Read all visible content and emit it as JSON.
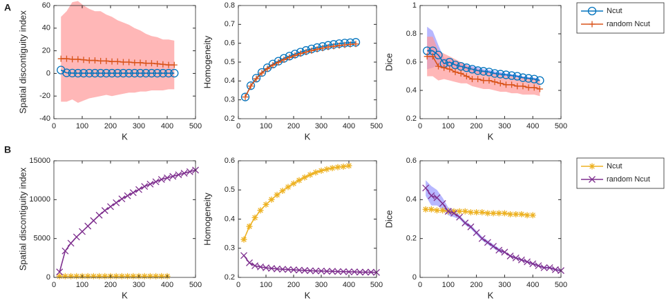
{
  "panels": [
    "A",
    "B"
  ],
  "chart_data": [
    {
      "type": "line",
      "ylabel": "Spatial discontiguity index",
      "xlabel": "K",
      "xlim": [
        0,
        500
      ],
      "xticks": [
        0,
        100,
        200,
        300,
        400,
        500
      ],
      "ylim": [
        -40,
        60
      ],
      "yticks": [
        -40,
        -20,
        0,
        20,
        40,
        60
      ],
      "series": [
        {
          "name": "Ncut",
          "color": "#0072bd",
          "marker": "o",
          "x": [
            25,
            45,
            65,
            85,
            105,
            125,
            145,
            165,
            185,
            205,
            225,
            245,
            265,
            285,
            305,
            325,
            345,
            365,
            385,
            405,
            425
          ],
          "values": [
            3,
            0.5,
            0.3,
            0.2,
            0.2,
            0.2,
            0.2,
            0.2,
            0.2,
            0.2,
            0.2,
            0.2,
            0.2,
            0.2,
            0.2,
            0.2,
            0.2,
            0.2,
            0.2,
            0.2,
            0.2
          ]
        },
        {
          "name": "random Ncut",
          "color": "#d95319",
          "marker": "+",
          "band_color": "#ff9999",
          "x": [
            25,
            45,
            65,
            85,
            105,
            125,
            145,
            165,
            185,
            205,
            225,
            245,
            265,
            285,
            305,
            325,
            345,
            365,
            385,
            405,
            425
          ],
          "values": [
            13,
            13,
            12.5,
            12.5,
            12,
            11.5,
            11.5,
            11,
            11,
            10.5,
            10.5,
            10,
            10,
            9.5,
            9.5,
            9,
            9,
            8.5,
            8,
            7.5,
            7.5
          ],
          "upper": [
            50,
            55,
            63,
            64,
            60,
            57,
            55,
            55,
            52,
            50,
            47,
            45,
            43,
            40,
            38,
            35,
            33,
            32,
            30,
            30,
            29
          ],
          "lower": [
            -25,
            -25,
            -23,
            -26,
            -24,
            -22,
            -21,
            -20,
            -19,
            -20,
            -19,
            -18,
            -17,
            -17,
            -16,
            -16,
            -15,
            -15,
            -15,
            -14,
            -14
          ]
        }
      ]
    },
    {
      "type": "line",
      "ylabel": "Homogeneity",
      "xlabel": "K",
      "xlim": [
        0,
        500
      ],
      "xticks": [
        0,
        100,
        200,
        300,
        400,
        500
      ],
      "ylim": [
        0.2,
        0.8
      ],
      "yticks": [
        0.2,
        0.3,
        0.4,
        0.5,
        0.6,
        0.7,
        0.8
      ],
      "series": [
        {
          "name": "Ncut",
          "color": "#0072bd",
          "marker": "o",
          "x": [
            25,
            45,
            65,
            85,
            105,
            125,
            145,
            165,
            185,
            205,
            225,
            245,
            265,
            285,
            305,
            325,
            345,
            365,
            385,
            405,
            425
          ],
          "values": [
            0.315,
            0.375,
            0.415,
            0.445,
            0.47,
            0.49,
            0.505,
            0.52,
            0.532,
            0.543,
            0.553,
            0.562,
            0.57,
            0.577,
            0.583,
            0.589,
            0.594,
            0.598,
            0.601,
            0.603,
            0.605
          ]
        },
        {
          "name": "random Ncut",
          "color": "#d95319",
          "marker": "+",
          "x": [
            25,
            45,
            65,
            85,
            105,
            125,
            145,
            165,
            185,
            205,
            225,
            245,
            265,
            285,
            305,
            325,
            345,
            365,
            385,
            405,
            425
          ],
          "values": [
            0.315,
            0.373,
            0.412,
            0.442,
            0.465,
            0.484,
            0.499,
            0.513,
            0.525,
            0.535,
            0.545,
            0.553,
            0.561,
            0.568,
            0.574,
            0.58,
            0.584,
            0.588,
            0.591,
            0.594,
            0.596
          ]
        }
      ]
    },
    {
      "type": "line",
      "ylabel": "Dice",
      "xlabel": "K",
      "xlim": [
        0,
        500
      ],
      "xticks": [
        0,
        100,
        200,
        300,
        400,
        500
      ],
      "ylim": [
        0.2,
        1
      ],
      "yticks": [
        0.2,
        0.4,
        0.6,
        0.8,
        1
      ],
      "series": [
        {
          "name": "Ncut",
          "color": "#0072bd",
          "marker": "o",
          "band_color": "#9999ff",
          "x": [
            25,
            45,
            65,
            85,
            105,
            125,
            145,
            165,
            185,
            205,
            225,
            245,
            265,
            285,
            305,
            325,
            345,
            365,
            385,
            405,
            425
          ],
          "values": [
            0.68,
            0.68,
            0.65,
            0.59,
            0.6,
            0.58,
            0.57,
            0.56,
            0.55,
            0.54,
            0.535,
            0.53,
            0.52,
            0.515,
            0.51,
            0.505,
            0.5,
            0.49,
            0.485,
            0.48,
            0.47
          ],
          "upper": [
            0.85,
            0.82,
            0.72,
            0.63,
            0.63,
            0.6,
            0.59,
            0.58,
            0.57,
            0.56,
            0.55,
            0.545,
            0.535,
            0.53,
            0.52,
            0.515,
            0.51,
            0.5,
            0.495,
            0.49,
            0.48
          ],
          "lower": [
            0.55,
            0.56,
            0.58,
            0.55,
            0.57,
            0.56,
            0.55,
            0.54,
            0.53,
            0.52,
            0.52,
            0.51,
            0.505,
            0.5,
            0.5,
            0.495,
            0.49,
            0.48,
            0.475,
            0.47,
            0.46
          ]
        },
        {
          "name": "random Ncut",
          "color": "#d95319",
          "marker": "+",
          "band_color": "#ff9999",
          "x": [
            25,
            45,
            65,
            85,
            105,
            125,
            145,
            165,
            185,
            205,
            225,
            245,
            265,
            285,
            305,
            325,
            345,
            365,
            385,
            405,
            425
          ],
          "values": [
            0.64,
            0.64,
            0.57,
            0.56,
            0.55,
            0.53,
            0.52,
            0.5,
            0.48,
            0.48,
            0.47,
            0.47,
            0.46,
            0.45,
            0.44,
            0.44,
            0.43,
            0.43,
            0.42,
            0.42,
            0.41
          ],
          "upper": [
            0.78,
            0.78,
            0.68,
            0.66,
            0.64,
            0.62,
            0.6,
            0.58,
            0.56,
            0.55,
            0.54,
            0.53,
            0.52,
            0.51,
            0.5,
            0.5,
            0.49,
            0.49,
            0.48,
            0.48,
            0.47
          ],
          "lower": [
            0.5,
            0.5,
            0.47,
            0.48,
            0.47,
            0.46,
            0.45,
            0.45,
            0.43,
            0.42,
            0.41,
            0.41,
            0.4,
            0.39,
            0.39,
            0.38,
            0.38,
            0.37,
            0.37,
            0.37,
            0.36
          ]
        }
      ]
    },
    {
      "type": "line",
      "ylabel": "Spatial discontiguity index",
      "xlabel": "K",
      "xlim": [
        0,
        500
      ],
      "xticks": [
        0,
        100,
        200,
        300,
        400,
        500
      ],
      "ylim": [
        0,
        15000
      ],
      "yticks": [
        0,
        5000,
        10000,
        15000
      ],
      "series": [
        {
          "name": "Ncut",
          "color": "#edb120",
          "marker": "*",
          "x": [
            20,
            40,
            60,
            80,
            100,
            120,
            140,
            160,
            180,
            200,
            220,
            240,
            260,
            280,
            300,
            320,
            340,
            360,
            380,
            400
          ],
          "values": [
            150,
            150,
            150,
            150,
            150,
            150,
            150,
            150,
            150,
            150,
            150,
            150,
            150,
            150,
            150,
            150,
            150,
            150,
            150,
            150
          ]
        },
        {
          "name": "random Ncut",
          "color": "#7e2f8e",
          "marker": "x",
          "x": [
            20,
            40,
            60,
            80,
            100,
            120,
            140,
            160,
            180,
            200,
            220,
            240,
            260,
            280,
            300,
            320,
            340,
            360,
            380,
            400,
            420,
            440,
            460,
            480,
            500
          ],
          "values": [
            700,
            3400,
            4400,
            5200,
            5900,
            6600,
            7300,
            8000,
            8600,
            9100,
            9600,
            10100,
            10500,
            10900,
            11300,
            11700,
            12000,
            12300,
            12600,
            12800,
            13000,
            13200,
            13400,
            13600,
            13800
          ]
        }
      ]
    },
    {
      "type": "line",
      "ylabel": "Homogeneity",
      "xlabel": "K",
      "xlim": [
        0,
        500
      ],
      "xticks": [
        0,
        100,
        200,
        300,
        400,
        500
      ],
      "ylim": [
        0.2,
        0.6
      ],
      "yticks": [
        0.2,
        0.3,
        0.4,
        0.5,
        0.6
      ],
      "series": [
        {
          "name": "Ncut",
          "color": "#edb120",
          "marker": "*",
          "x": [
            20,
            40,
            60,
            80,
            100,
            120,
            140,
            160,
            180,
            200,
            220,
            240,
            260,
            280,
            300,
            320,
            340,
            360,
            380,
            400
          ],
          "values": [
            0.33,
            0.375,
            0.405,
            0.43,
            0.45,
            0.467,
            0.483,
            0.497,
            0.51,
            0.522,
            0.533,
            0.543,
            0.552,
            0.56,
            0.566,
            0.571,
            0.575,
            0.578,
            0.58,
            0.583
          ]
        },
        {
          "name": "random Ncut",
          "color": "#7e2f8e",
          "marker": "x",
          "x": [
            20,
            40,
            60,
            80,
            100,
            120,
            140,
            160,
            180,
            200,
            220,
            240,
            260,
            280,
            300,
            320,
            340,
            360,
            380,
            400,
            420,
            440,
            460,
            480,
            500
          ],
          "values": [
            0.275,
            0.25,
            0.24,
            0.236,
            0.233,
            0.231,
            0.229,
            0.228,
            0.227,
            0.226,
            0.225,
            0.224,
            0.223,
            0.222,
            0.222,
            0.221,
            0.221,
            0.22,
            0.22,
            0.219,
            0.219,
            0.218,
            0.218,
            0.218,
            0.217
          ]
        }
      ]
    },
    {
      "type": "line",
      "ylabel": "Dice",
      "xlabel": "K",
      "xlim": [
        0,
        500
      ],
      "xticks": [
        0,
        100,
        200,
        300,
        400,
        500
      ],
      "ylim": [
        0,
        0.6
      ],
      "yticks": [
        0,
        0.2,
        0.4,
        0.6
      ],
      "series": [
        {
          "name": "Ncut",
          "color": "#edb120",
          "marker": "*",
          "x": [
            20,
            40,
            60,
            80,
            100,
            120,
            140,
            160,
            180,
            200,
            220,
            240,
            260,
            280,
            300,
            320,
            340,
            360,
            380,
            400
          ],
          "values": [
            0.35,
            0.35,
            0.345,
            0.345,
            0.34,
            0.34,
            0.34,
            0.34,
            0.335,
            0.335,
            0.335,
            0.33,
            0.33,
            0.33,
            0.33,
            0.325,
            0.325,
            0.325,
            0.32,
            0.32
          ]
        },
        {
          "name": "random Ncut",
          "color": "#7e2f8e",
          "marker": "x",
          "band_color": "#9999ff",
          "x": [
            20,
            40,
            60,
            80,
            100,
            120,
            140,
            160,
            180,
            200,
            220,
            240,
            260,
            280,
            300,
            320,
            340,
            360,
            380,
            400,
            420,
            440,
            460,
            480,
            500
          ],
          "values": [
            0.46,
            0.42,
            0.41,
            0.38,
            0.34,
            0.33,
            0.31,
            0.28,
            0.26,
            0.23,
            0.2,
            0.18,
            0.16,
            0.14,
            0.13,
            0.11,
            0.1,
            0.09,
            0.08,
            0.07,
            0.06,
            0.05,
            0.05,
            0.04,
            0.035
          ],
          "upper": [
            0.5,
            0.47,
            0.45,
            0.41,
            0.36,
            0.35,
            0.32,
            0.29,
            0.27,
            0.24,
            0.21,
            0.19,
            0.17,
            0.15,
            0.135,
            0.115,
            0.105,
            0.095,
            0.085,
            0.075,
            0.065,
            0.055,
            0.055,
            0.045,
            0.04
          ],
          "lower": [
            0.42,
            0.37,
            0.37,
            0.35,
            0.32,
            0.31,
            0.3,
            0.27,
            0.25,
            0.22,
            0.19,
            0.17,
            0.15,
            0.13,
            0.125,
            0.105,
            0.095,
            0.085,
            0.075,
            0.065,
            0.055,
            0.045,
            0.045,
            0.035,
            0.03
          ]
        }
      ]
    }
  ]
}
